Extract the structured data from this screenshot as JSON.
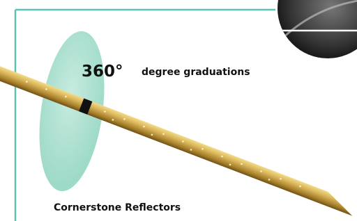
{
  "labels": {
    "angle": "360°",
    "graduations": "degree graduations",
    "reflectors": "Cornerstone Reflectors"
  }
}
